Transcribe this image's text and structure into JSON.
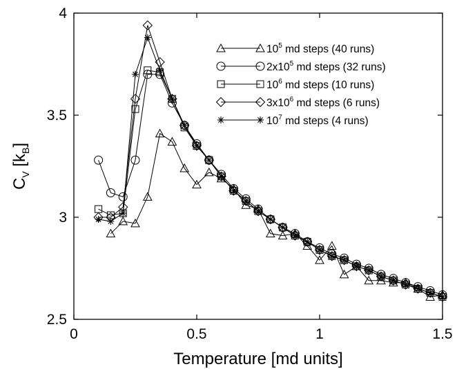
{
  "chart_data": {
    "type": "line",
    "xlabel": "Temperature [md units]",
    "ylabel": {
      "main": "C",
      "sub1": "V",
      "mid": " [k",
      "sub2": "B",
      "end": "]"
    },
    "xlim": [
      0,
      1.5
    ],
    "ylim": [
      2.5,
      4
    ],
    "xticks": [
      "0",
      "0.5",
      "1",
      "1.5"
    ],
    "yticks": [
      "2.5",
      "3",
      "3.5",
      "4"
    ],
    "grid": false,
    "legend_position": "top-right",
    "series": [
      {
        "name": "10^5 md steps (40 runs)",
        "legend": {
          "pre": "10",
          "sup": "5",
          "post": " md steps (40 runs)"
        },
        "marker": "triangle",
        "x": [
          0.15,
          0.2,
          0.25,
          0.3,
          0.35,
          0.4,
          0.45,
          0.5,
          0.55,
          0.6,
          0.65,
          0.7,
          0.75,
          0.8,
          0.85,
          0.9,
          0.95,
          1.0,
          1.05,
          1.1,
          1.15,
          1.2,
          1.25,
          1.3,
          1.35,
          1.4,
          1.45,
          1.5
        ],
        "y": [
          2.92,
          2.98,
          2.97,
          3.1,
          3.41,
          3.37,
          3.24,
          3.16,
          3.22,
          3.19,
          3.14,
          3.06,
          3.04,
          2.92,
          2.91,
          2.92,
          2.86,
          2.79,
          2.86,
          2.72,
          2.76,
          2.69,
          2.69,
          2.68,
          2.68,
          2.65,
          2.61,
          2.62
        ]
      },
      {
        "name": "2x10^5 md steps (32 runs)",
        "legend": {
          "pre": "2x10",
          "sup": "5",
          "post": " md steps (32 runs)"
        },
        "marker": "circle",
        "x": [
          0.1,
          0.15,
          0.2,
          0.25,
          0.3,
          0.35,
          0.4,
          0.45,
          0.5,
          0.55,
          0.6,
          0.65,
          0.7,
          0.75,
          0.8,
          0.85,
          0.9,
          0.95,
          1.0,
          1.05,
          1.1,
          1.15,
          1.2,
          1.25,
          1.3,
          1.35,
          1.4,
          1.45,
          1.5
        ],
        "y": [
          3.28,
          3.12,
          3.1,
          3.28,
          3.7,
          3.7,
          3.56,
          3.45,
          3.36,
          3.28,
          3.21,
          3.14,
          3.09,
          3.04,
          2.99,
          2.95,
          2.92,
          2.88,
          2.85,
          2.82,
          2.8,
          2.77,
          2.75,
          2.72,
          2.7,
          2.68,
          2.66,
          2.64,
          2.62
        ]
      },
      {
        "name": "10^6 md steps (10 runs)",
        "legend": {
          "pre": "10",
          "sup": "6",
          "post": " md steps (10 runs)"
        },
        "marker": "square",
        "x": [
          0.1,
          0.15,
          0.2,
          0.25,
          0.3,
          0.35,
          0.4,
          0.45,
          0.5,
          0.55,
          0.6,
          0.65,
          0.7,
          0.75,
          0.8,
          0.85,
          0.9,
          0.95,
          1.0,
          1.05,
          1.1,
          1.15,
          1.2,
          1.25,
          1.3,
          1.35,
          1.4,
          1.45,
          1.5
        ],
        "y": [
          3.04,
          3.01,
          3.02,
          3.53,
          3.72,
          3.71,
          3.58,
          3.44,
          3.35,
          3.28,
          3.2,
          3.13,
          3.08,
          3.03,
          2.99,
          2.95,
          2.91,
          2.88,
          2.84,
          2.81,
          2.79,
          2.76,
          2.74,
          2.71,
          2.69,
          2.67,
          2.65,
          2.63,
          2.61
        ]
      },
      {
        "name": "3x10^6 md steps (6 runs)",
        "legend": {
          "pre": "3x10",
          "sup": "6",
          "post": " md steps (6 runs)"
        },
        "marker": "diamond",
        "x": [
          0.1,
          0.15,
          0.2,
          0.25,
          0.3,
          0.35,
          0.4,
          0.45,
          0.5,
          0.55,
          0.6,
          0.65,
          0.7,
          0.75,
          0.8,
          0.85,
          0.9,
          0.95,
          1.0,
          1.05,
          1.1,
          1.15,
          1.2,
          1.25,
          1.3,
          1.35,
          1.4,
          1.45,
          1.5
        ],
        "y": [
          3.0,
          3.0,
          3.05,
          3.58,
          3.94,
          3.76,
          3.58,
          3.45,
          3.35,
          3.28,
          3.2,
          3.13,
          3.08,
          3.03,
          2.99,
          2.95,
          2.91,
          2.88,
          2.84,
          2.81,
          2.79,
          2.76,
          2.74,
          2.71,
          2.69,
          2.67,
          2.65,
          2.63,
          2.61
        ]
      },
      {
        "name": "10^7 md steps (4 runs)",
        "legend": {
          "pre": "10",
          "sup": "7",
          "post": " md steps (4 runs)"
        },
        "marker": "star",
        "x": [
          0.1,
          0.15,
          0.2,
          0.25,
          0.3,
          0.35,
          0.4,
          0.45,
          0.5,
          0.55,
          0.6,
          0.65,
          0.7,
          0.75,
          0.8,
          0.85,
          0.9,
          0.95,
          1.0,
          1.05,
          1.1,
          1.15,
          1.2,
          1.25,
          1.3,
          1.35,
          1.4,
          1.45,
          1.5
        ],
        "y": [
          2.99,
          2.98,
          3.02,
          3.7,
          3.88,
          3.72,
          3.58,
          3.45,
          3.35,
          3.28,
          3.2,
          3.13,
          3.08,
          3.03,
          2.99,
          2.95,
          2.91,
          2.88,
          2.84,
          2.81,
          2.79,
          2.76,
          2.74,
          2.71,
          2.69,
          2.67,
          2.65,
          2.63,
          2.61
        ]
      }
    ]
  }
}
